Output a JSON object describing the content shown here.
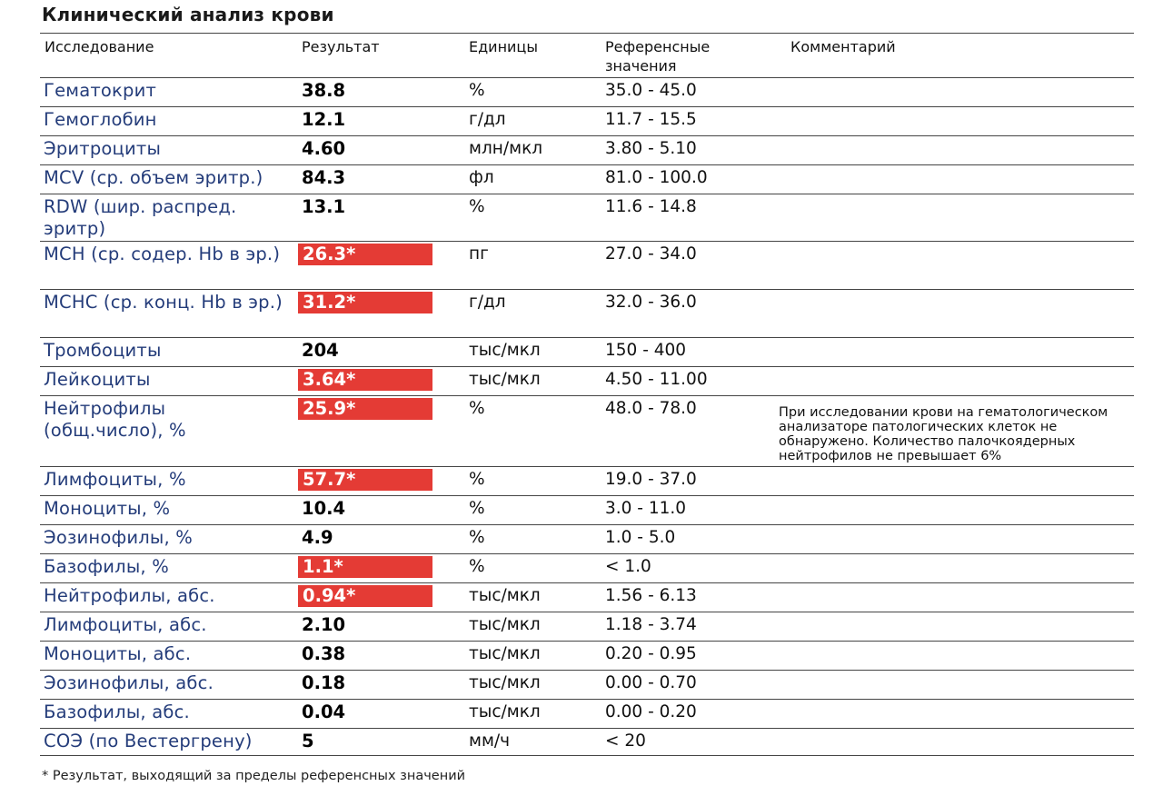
{
  "title": "Клинический анализ крови",
  "columns": {
    "test": "Исследование",
    "result": "Результат",
    "units": "Единицы",
    "reference": "Референсные значения",
    "comment": "Комментарий"
  },
  "rows": [
    {
      "name": "Гематокрит",
      "result": "38.8",
      "flag": false,
      "units": "%",
      "reference": "35.0 - 45.0",
      "comment": ""
    },
    {
      "name": "Гемоглобин",
      "result": "12.1",
      "flag": false,
      "units": "г/дл",
      "reference": "11.7 - 15.5",
      "comment": ""
    },
    {
      "name": "Эритроциты",
      "result": "4.60",
      "flag": false,
      "units": "млн/мкл",
      "reference": "3.80 - 5.10",
      "comment": ""
    },
    {
      "name": "MCV (ср. объем эритр.)",
      "result": "84.3",
      "flag": false,
      "units": "фл",
      "reference": "81.0 - 100.0",
      "comment": ""
    },
    {
      "name": "RDW (шир. распред. эритр)",
      "result": "13.1",
      "flag": false,
      "units": "%",
      "reference": "11.6 - 14.8",
      "comment": ""
    },
    {
      "name": "MCH (ср. содер. Hb в эр.)",
      "result": "26.3*",
      "flag": true,
      "units": "пг",
      "reference": "27.0 - 34.0",
      "comment": ""
    },
    {
      "name": "MCHC (ср. конц. Hb в эр.)",
      "result": "31.2*",
      "flag": true,
      "units": "г/дл",
      "reference": "32.0 - 36.0",
      "comment": ""
    },
    {
      "name": "Тромбоциты",
      "result": "204",
      "flag": false,
      "units": "тыс/мкл",
      "reference": "150 - 400",
      "comment": ""
    },
    {
      "name": "Лейкоциты",
      "result": "3.64*",
      "flag": true,
      "units": "тыс/мкл",
      "reference": "4.50 - 11.00",
      "comment": ""
    },
    {
      "name": "Нейтрофилы (общ.число), %",
      "result": "25.9*",
      "flag": true,
      "units": "%",
      "reference": "48.0 - 78.0",
      "comment": "При исследовании крови на гематологическом анализаторе патологических клеток не обнаружено. Количество палочкоядерных нейтрофилов не превышает 6%"
    },
    {
      "name": "Лимфоциты, %",
      "result": "57.7*",
      "flag": true,
      "units": "%",
      "reference": "19.0 - 37.0",
      "comment": ""
    },
    {
      "name": "Моноциты, %",
      "result": "10.4",
      "flag": false,
      "units": "%",
      "reference": "3.0 - 11.0",
      "comment": ""
    },
    {
      "name": "Эозинофилы, %",
      "result": "4.9",
      "flag": false,
      "units": "%",
      "reference": "1.0 - 5.0",
      "comment": ""
    },
    {
      "name": "Базофилы, %",
      "result": "1.1*",
      "flag": true,
      "units": "%",
      "reference": "< 1.0",
      "comment": ""
    },
    {
      "name": "Нейтрофилы, абс.",
      "result": "0.94*",
      "flag": true,
      "units": "тыс/мкл",
      "reference": "1.56 - 6.13",
      "comment": ""
    },
    {
      "name": "Лимфоциты, абс.",
      "result": "2.10",
      "flag": false,
      "units": "тыс/мкл",
      "reference": "1.18 - 3.74",
      "comment": ""
    },
    {
      "name": "Моноциты, абс.",
      "result": "0.38",
      "flag": false,
      "units": "тыс/мкл",
      "reference": "0.20 - 0.95",
      "comment": ""
    },
    {
      "name": "Эозинофилы, абс.",
      "result": "0.18",
      "flag": false,
      "units": "тыс/мкл",
      "reference": "0.00 - 0.70",
      "comment": ""
    },
    {
      "name": "Базофилы, абс.",
      "result": "0.04",
      "flag": false,
      "units": "тыс/мкл",
      "reference": "0.00 - 0.20",
      "comment": ""
    },
    {
      "name": "СОЭ (по Вестергрену)",
      "result": "5",
      "flag": false,
      "units": "мм/ч",
      "reference": "< 20",
      "comment": ""
    }
  ],
  "footnote": "* Результат, выходящий за пределы референсных значений",
  "colors": {
    "flag_background": "#e43b35",
    "name_text": "#243c7a"
  }
}
